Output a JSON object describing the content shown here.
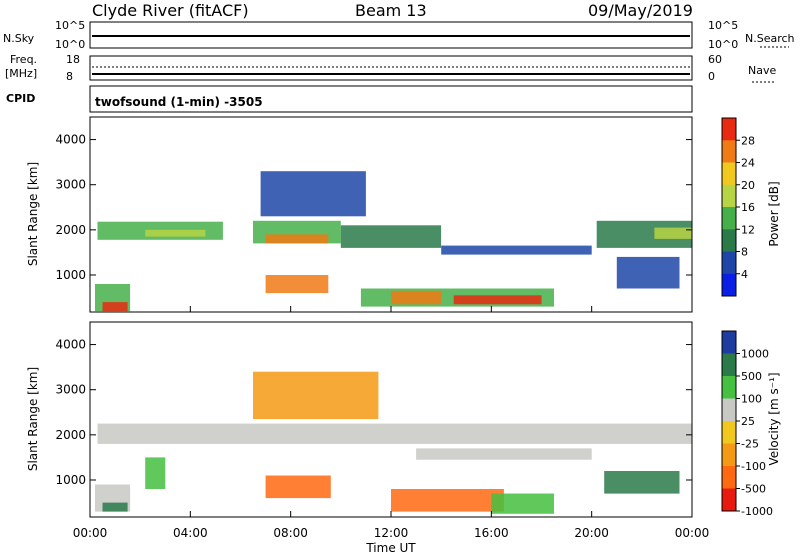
{
  "header": {
    "title": "Clyde River (fitACF)",
    "beam": "Beam 13",
    "date": "09/May/2019"
  },
  "top_panels": {
    "nsky_label": "N.Sky",
    "nsky_ticks": [
      "10^5",
      "10^0"
    ],
    "nsearch_label": "N.Search",
    "nsearch_ticks": [
      "10^5",
      "10^0"
    ],
    "freq_label": "Freq.",
    "freq_unit": "[MHz]",
    "freq_ticks": [
      "18",
      "8"
    ],
    "nave_label": "Nave",
    "nave_ticks": [
      "60",
      "0"
    ],
    "cpid_label": "CPID",
    "cpid_text": "twofsound (1-min) -3505"
  },
  "chart_data": [
    {
      "type": "heatmap",
      "name": "power",
      "ylabel": "Slant Range [km]",
      "xlabel": "",
      "ylim": [
        180,
        4500
      ],
      "xlim": [
        0,
        24
      ],
      "y_ticks": [
        1000,
        2000,
        3000,
        4000
      ],
      "colorbar_label": "Power [dB]",
      "colorbar_ticks": [
        "28",
        "24",
        "20",
        "16",
        "12",
        "8",
        "4"
      ],
      "colors": [
        "#0a1fe6",
        "#1e46a8",
        "#2a7a4a",
        "#45b04a",
        "#b7d444",
        "#f0c81e",
        "#f07a14",
        "#e82a10"
      ],
      "regions": [
        {
          "t0": 0.3,
          "t1": 5.3,
          "r0": 1780,
          "r1": 2180,
          "level": 3
        },
        {
          "t0": 2.2,
          "t1": 4.6,
          "r0": 1850,
          "r1": 2000,
          "level": 4
        },
        {
          "t0": 6.5,
          "t1": 10.0,
          "r0": 1700,
          "r1": 2200,
          "level": 3
        },
        {
          "t0": 7.0,
          "t1": 9.5,
          "r0": 1700,
          "r1": 1900,
          "level": 6
        },
        {
          "t0": 10.0,
          "t1": 14.0,
          "r0": 1600,
          "r1": 2100,
          "level": 2
        },
        {
          "t0": 14.0,
          "t1": 20.0,
          "r0": 1450,
          "r1": 1650,
          "level": 1
        },
        {
          "t0": 20.2,
          "t1": 24.0,
          "r0": 1600,
          "r1": 2200,
          "level": 2
        },
        {
          "t0": 22.5,
          "t1": 24.0,
          "r0": 1800,
          "r1": 2050,
          "level": 4
        },
        {
          "t0": 0.2,
          "t1": 1.6,
          "r0": 200,
          "r1": 800,
          "level": 3
        },
        {
          "t0": 0.5,
          "t1": 1.5,
          "r0": 200,
          "r1": 400,
          "level": 7
        },
        {
          "t0": 7.0,
          "t1": 9.5,
          "r0": 600,
          "r1": 1000,
          "level": 6
        },
        {
          "t0": 10.8,
          "t1": 18.5,
          "r0": 300,
          "r1": 700,
          "level": 3
        },
        {
          "t0": 14.5,
          "t1": 18.0,
          "r0": 350,
          "r1": 550,
          "level": 7
        },
        {
          "t0": 12.0,
          "t1": 14.0,
          "r0": 350,
          "r1": 650,
          "level": 6
        },
        {
          "t0": 6.8,
          "t1": 11.0,
          "r0": 2300,
          "r1": 3300,
          "level": 1
        },
        {
          "t0": 21.0,
          "t1": 23.5,
          "r0": 700,
          "r1": 1400,
          "level": 1
        }
      ]
    },
    {
      "type": "heatmap",
      "name": "velocity",
      "ylabel": "Slant Range [km]",
      "xlabel": "Time UT",
      "ylim": [
        180,
        4500
      ],
      "xlim": [
        0,
        24
      ],
      "y_ticks": [
        1000,
        2000,
        3000,
        4000
      ],
      "x_ticks": [
        "00:00",
        "04:00",
        "08:00",
        "12:00",
        "16:00",
        "20:00",
        "00:00"
      ],
      "colorbar_label": "Velocity [m s⁻¹]",
      "colorbar_ticks": [
        "1000",
        "500",
        "100",
        "25",
        "-25",
        "-100",
        "-500",
        "-1000"
      ],
      "colors": [
        "#1e3ca0",
        "#2a7a4a",
        "#45c040",
        "#c8c8c4",
        "#f0c81e",
        "#f49a14",
        "#ff6a10",
        "#e81a10"
      ],
      "regions": [
        {
          "t0": 0.3,
          "t1": 24.0,
          "r0": 1800,
          "r1": 2250,
          "level": 3
        },
        {
          "t0": 13.0,
          "t1": 20.0,
          "r0": 1450,
          "r1": 1700,
          "level": 3
        },
        {
          "t0": 0.2,
          "t1": 1.6,
          "r0": 300,
          "r1": 900,
          "level": 3
        },
        {
          "t0": 0.5,
          "t1": 1.5,
          "r0": 300,
          "r1": 500,
          "level": 1
        },
        {
          "t0": 7.0,
          "t1": 9.6,
          "r0": 600,
          "r1": 1100,
          "level": 6
        },
        {
          "t0": 12.0,
          "t1": 16.5,
          "r0": 300,
          "r1": 800,
          "level": 6
        },
        {
          "t0": 16.0,
          "t1": 18.5,
          "r0": 250,
          "r1": 700,
          "level": 2
        },
        {
          "t0": 6.5,
          "t1": 11.5,
          "r0": 2350,
          "r1": 3400,
          "level": 5
        },
        {
          "t0": 2.2,
          "t1": 3.0,
          "r0": 800,
          "r1": 1500,
          "level": 2
        },
        {
          "t0": 20.5,
          "t1": 23.5,
          "r0": 700,
          "r1": 1200,
          "level": 1
        }
      ]
    }
  ]
}
